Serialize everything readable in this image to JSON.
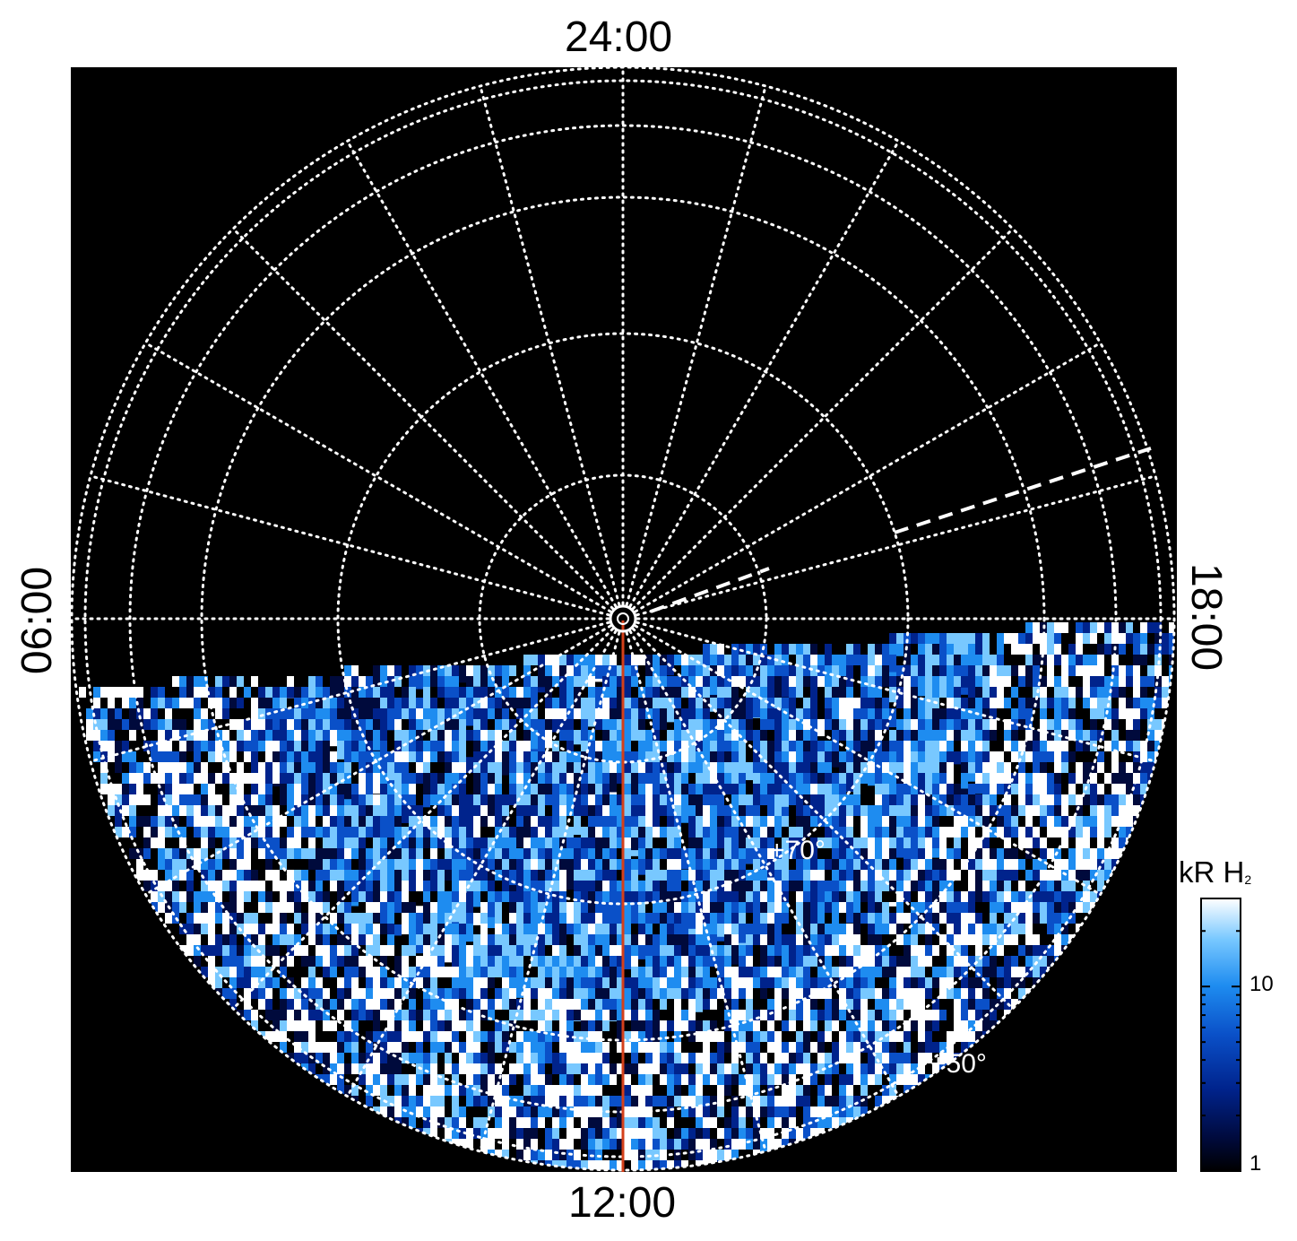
{
  "chart_data": {
    "type": "heatmap",
    "projection": "polar-stereographic",
    "local_time_labels": {
      "top": "24:00",
      "right": "18:00",
      "bottom": "12:00",
      "left": "06:00"
    },
    "latitude_labels": [
      {
        "value": 70,
        "text": "+70°"
      },
      {
        "value": 50,
        "text": "+50°"
      }
    ],
    "latitude_circles_deg": [
      85,
      80,
      70,
      60,
      50,
      40
    ],
    "meridian_spacing_hours": 1,
    "grid": "on",
    "grid_style": "dotted",
    "coverage": "lower half (dayside, 06:00 through 12:00 to 18:00)",
    "highlighted_meridian_lt": "12:00",
    "dashed_meridian_lt": [
      "~19:10",
      "~21:10"
    ],
    "colorbar": {
      "title_main": "kR H",
      "title_sub": "2",
      "scale": "log",
      "ticks": [
        {
          "value": 1,
          "label": "1"
        },
        {
          "value": 10,
          "label": "10"
        }
      ],
      "range": [
        1,
        30
      ],
      "colormap": [
        "#000000",
        "#000a3c",
        "#00238c",
        "#0a50c8",
        "#1e8cf0",
        "#78c8ff",
        "#ffffff"
      ],
      "placement": "right"
    },
    "colors": {
      "background": "#000000",
      "grid": "#ffffff",
      "meridian_highlight": "#d4401a",
      "dashed_line": "#ffffff"
    }
  }
}
